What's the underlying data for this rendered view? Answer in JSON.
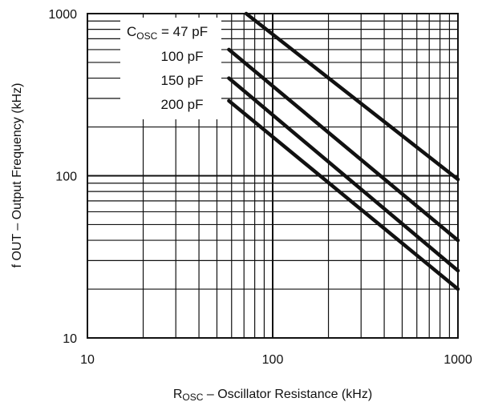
{
  "chart_data": {
    "type": "line",
    "title": "",
    "xlabel": {
      "main": "R",
      "sub": "OSC",
      "rest": " – Oscillator Resistance (kHz)"
    },
    "ylabel": "f OUT – Output Frequency (kHz)",
    "x_scale": "log",
    "y_scale": "log",
    "xlim": [
      10,
      1000
    ],
    "ylim": [
      10,
      1000
    ],
    "x_ticks": [
      {
        "value": 10,
        "label": "10"
      },
      {
        "value": 100,
        "label": "100"
      },
      {
        "value": 1000,
        "label": "1000"
      }
    ],
    "y_ticks": [
      {
        "value": 10,
        "label": "10"
      },
      {
        "value": 100,
        "label": "100"
      },
      {
        "value": 1000,
        "label": "1000"
      }
    ],
    "grid": true,
    "legend": "inline-labels",
    "line_color": "#111111",
    "grid_color": "#111111",
    "series": [
      {
        "name": "",
        "label_parts": [
          {
            "text": "C"
          },
          {
            "text": "OSC",
            "sub": true
          },
          {
            "text": " = 47 pF"
          }
        ],
        "x": [
          72,
          1000
        ],
        "y": [
          1000,
          95
        ]
      },
      {
        "name": "",
        "label_parts": [
          {
            "text": "100 pF"
          }
        ],
        "x": [
          58,
          1000
        ],
        "y": [
          600,
          40
        ]
      },
      {
        "name": "",
        "label_parts": [
          {
            "text": "150 pF"
          }
        ],
        "x": [
          58,
          1000
        ],
        "y": [
          400,
          26
        ]
      },
      {
        "name": "",
        "label_parts": [
          {
            "text": "200 pF"
          }
        ],
        "x": [
          58,
          1000
        ],
        "y": [
          290,
          20
        ]
      }
    ]
  }
}
